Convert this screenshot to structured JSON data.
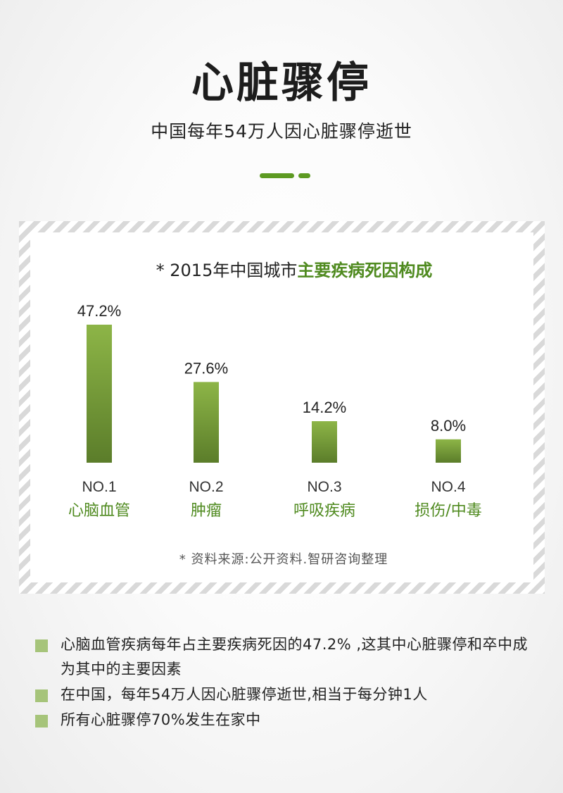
{
  "header": {
    "title": "心脏骤停",
    "subtitle": "中国每年54万人因心脏骤停逝世"
  },
  "chart_data": {
    "type": "bar",
    "title_prefix": "* 2015年中国城市",
    "title_highlight": "主要疾病死因构成",
    "categories": [
      "心脑血管",
      "肿瘤",
      "呼吸疾病",
      "损伤/中毒"
    ],
    "ranks": [
      "NO.1",
      "NO.2",
      "NO.3",
      "NO.4"
    ],
    "values": [
      47.2,
      27.6,
      14.2,
      8.0
    ],
    "value_labels": [
      "47.2%",
      "27.6%",
      "14.2%",
      "8.0%"
    ],
    "ylim": [
      0,
      47.2
    ],
    "grid": false,
    "colors": {
      "bar_top": "#8db547",
      "bar_bottom": "#5b7d2a",
      "category": "#4f8a1f",
      "rank": "#333333",
      "value_label": "#222222"
    }
  },
  "source": "* 资料来源:公开资料.智研咨询整理",
  "notes": [
    "心脑血管疾病每年占主要疾病死因的47.2% ,这其中心脏骤停和卒中成为其中的主要因素",
    "在中国，每年54万人因心脏骤停逝世,相当于每分钟1人",
    "所有心脏骤停70%发生在家中"
  ],
  "theme": {
    "accent": "#5d9a22",
    "bullet": "#a6c47a"
  }
}
